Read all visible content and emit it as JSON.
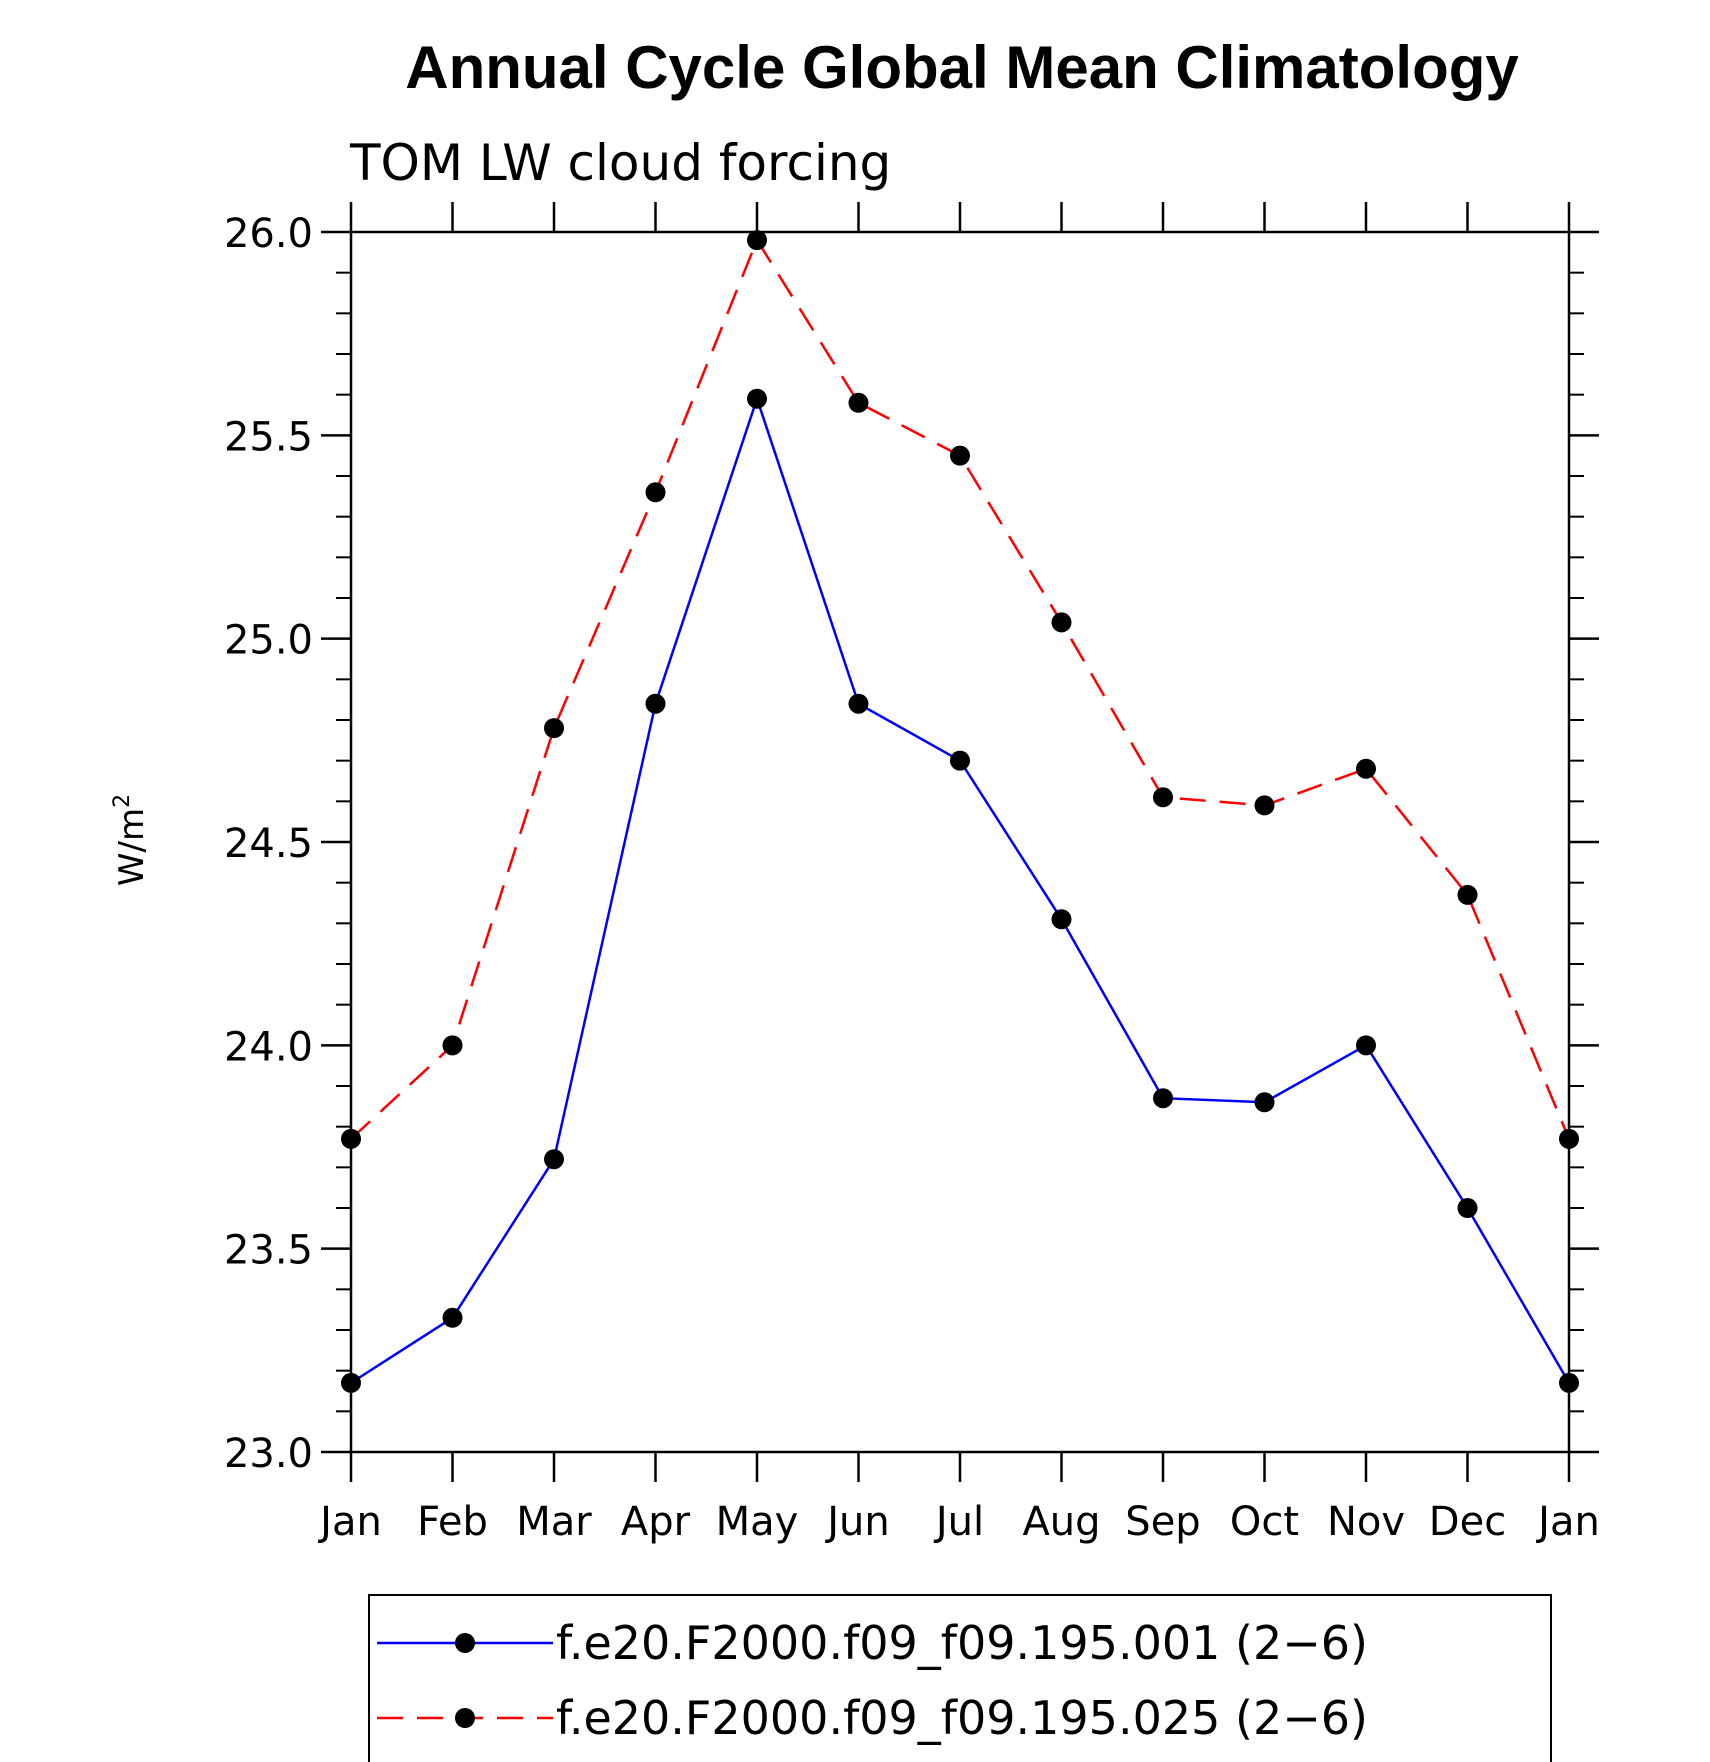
{
  "chart_data": {
    "type": "line",
    "title": "Annual Cycle Global Mean Climatology",
    "subtitle": "TOM LW cloud forcing",
    "ylabel": "W/m",
    "ylabel_sup": "2",
    "xlabel": "",
    "categories": [
      "Jan",
      "Feb",
      "Mar",
      "Apr",
      "May",
      "Jun",
      "Jul",
      "Aug",
      "Sep",
      "Oct",
      "Nov",
      "Dec",
      "Jan"
    ],
    "ylim": [
      23.0,
      26.0
    ],
    "yticks": [
      "23.0",
      "23.5",
      "24.0",
      "24.5",
      "25.0",
      "25.5",
      "26.0"
    ],
    "grid": false,
    "legend_position": "bottom",
    "series": [
      {
        "name": "f.e20.F2000.f09_f09.195.001 (2−6)",
        "color": "#0000ff",
        "dash": "solid",
        "marker": "filled-circle",
        "values": [
          23.17,
          23.33,
          23.72,
          24.84,
          25.59,
          24.84,
          24.7,
          24.31,
          23.87,
          23.86,
          24.0,
          23.6,
          23.17
        ]
      },
      {
        "name": "f.e20.F2000.f09_f09.195.025 (2−6)",
        "color": "#ff0000",
        "dash": "dashed",
        "marker": "filled-circle",
        "values": [
          23.77,
          24.0,
          24.78,
          25.36,
          25.98,
          25.58,
          25.45,
          25.04,
          24.61,
          24.59,
          24.68,
          24.37,
          23.77
        ]
      }
    ]
  }
}
